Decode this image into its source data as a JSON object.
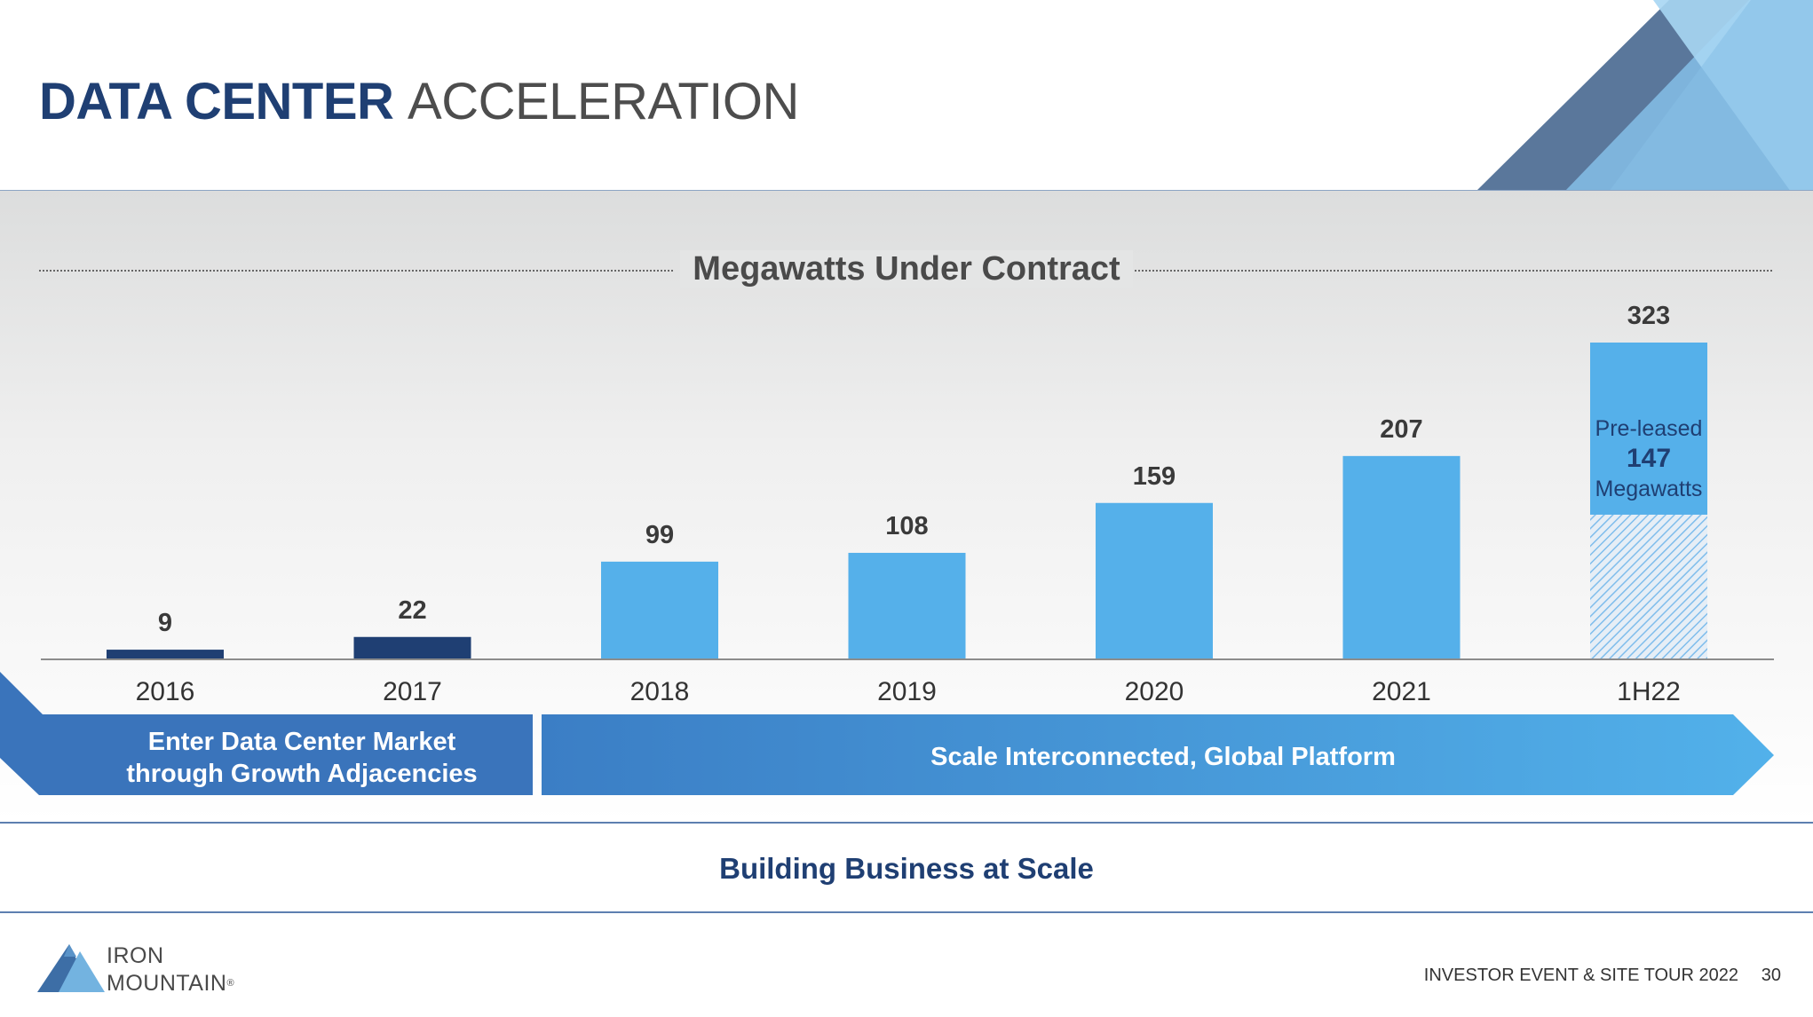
{
  "title": {
    "bold": "DATA CENTER",
    "light": "ACCELERATION"
  },
  "colors": {
    "brand_dark": "#1f3f73",
    "bar_2016_2017": "#1f3f73",
    "bar_main": "#55b0ea",
    "phase1": "#3a74bb",
    "phase2_start": "#3b7ec5",
    "phase2_end": "#52b1ea"
  },
  "chart_data": {
    "type": "bar",
    "title": "Megawatts Under Contract",
    "categories": [
      "2016",
      "2017",
      "2018",
      "2019",
      "2020",
      "2021",
      "1H22"
    ],
    "values": [
      9,
      22,
      99,
      108,
      159,
      207,
      323
    ],
    "value_labels": [
      "9",
      "22",
      "99",
      "108",
      "159",
      "207",
      "323"
    ],
    "ylim": [
      0,
      323
    ],
    "grid": false,
    "annotation": {
      "category": "1H22",
      "line1": "Pre-leased",
      "number": "147",
      "line3": "Megawatts",
      "pre_leased_value": 147
    }
  },
  "phases": [
    {
      "line1": "Enter Data Center Market",
      "line2": "through Growth Adjacencies"
    },
    {
      "label": "Scale Interconnected, Global Platform"
    }
  ],
  "subtitle": "Building Business at Scale",
  "logo": {
    "line1": "IRON",
    "line2": "MOUNTAIN",
    "reg": "®"
  },
  "footer": {
    "event": "INVESTOR EVENT & SITE TOUR 2022",
    "page": "30"
  }
}
